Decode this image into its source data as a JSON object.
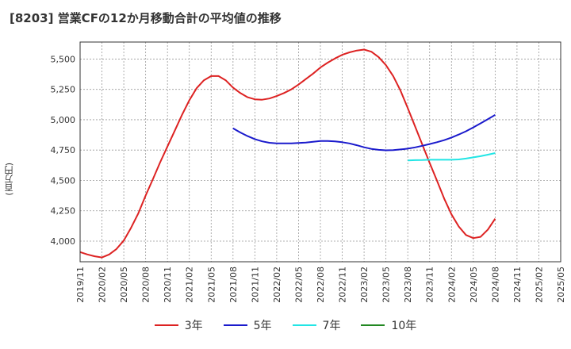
{
  "chart_data": {
    "type": "line",
    "title": "[8203]  営業CFの12か月移動合計の平均値の推移",
    "ylabel": "(百万円)",
    "ylim": [
      3830,
      5640
    ],
    "yticks": [
      4000,
      4250,
      4500,
      4750,
      5000,
      5250,
      5500
    ],
    "ytick_labels": [
      "4,000",
      "4,250",
      "4,500",
      "4,750",
      "5,000",
      "5,250",
      "5,500"
    ],
    "xlim": [
      "2019-11",
      "2025-05"
    ],
    "xtick_labels": [
      "2019/11",
      "2020/02",
      "2020/05",
      "2020/08",
      "2020/11",
      "2021/02",
      "2021/05",
      "2021/08",
      "2021/11",
      "2022/02",
      "2022/05",
      "2022/08",
      "2022/11",
      "2023/02",
      "2023/05",
      "2023/08",
      "2023/11",
      "2024/02",
      "2024/05",
      "2024/08",
      "2024/11",
      "2025/02",
      "2025/05"
    ],
    "grid": true,
    "legend_position": "bottom",
    "series": [
      {
        "name": "3年",
        "color": "#dd2222",
        "points": [
          [
            "2019-11",
            3910
          ],
          [
            "2019-12",
            3890
          ],
          [
            "2020-01",
            3875
          ],
          [
            "2020-02",
            3865
          ],
          [
            "2020-03",
            3890
          ],
          [
            "2020-04",
            3935
          ],
          [
            "2020-05",
            4005
          ],
          [
            "2020-06",
            4110
          ],
          [
            "2020-07",
            4230
          ],
          [
            "2020-08",
            4375
          ],
          [
            "2020-09",
            4510
          ],
          [
            "2020-10",
            4650
          ],
          [
            "2020-11",
            4780
          ],
          [
            "2020-12",
            4910
          ],
          [
            "2021-01",
            5040
          ],
          [
            "2021-02",
            5160
          ],
          [
            "2021-03",
            5260
          ],
          [
            "2021-04",
            5325
          ],
          [
            "2021-05",
            5360
          ],
          [
            "2021-06",
            5360
          ],
          [
            "2021-07",
            5325
          ],
          [
            "2021-08",
            5265
          ],
          [
            "2021-09",
            5220
          ],
          [
            "2021-10",
            5185
          ],
          [
            "2021-11",
            5168
          ],
          [
            "2021-12",
            5165
          ],
          [
            "2022-01",
            5175
          ],
          [
            "2022-02",
            5195
          ],
          [
            "2022-03",
            5220
          ],
          [
            "2022-04",
            5250
          ],
          [
            "2022-05",
            5290
          ],
          [
            "2022-06",
            5335
          ],
          [
            "2022-07",
            5380
          ],
          [
            "2022-08",
            5430
          ],
          [
            "2022-09",
            5470
          ],
          [
            "2022-10",
            5505
          ],
          [
            "2022-11",
            5535
          ],
          [
            "2022-12",
            5555
          ],
          [
            "2023-01",
            5570
          ],
          [
            "2023-02",
            5578
          ],
          [
            "2023-03",
            5560
          ],
          [
            "2023-04",
            5515
          ],
          [
            "2023-05",
            5450
          ],
          [
            "2023-06",
            5360
          ],
          [
            "2023-07",
            5240
          ],
          [
            "2023-08",
            5095
          ],
          [
            "2023-09",
            4945
          ],
          [
            "2023-10",
            4795
          ],
          [
            "2023-11",
            4645
          ],
          [
            "2023-12",
            4500
          ],
          [
            "2024-01",
            4350
          ],
          [
            "2024-02",
            4220
          ],
          [
            "2024-03",
            4120
          ],
          [
            "2024-04",
            4050
          ],
          [
            "2024-05",
            4025
          ],
          [
            "2024-06",
            4035
          ],
          [
            "2024-07",
            4095
          ],
          [
            "2024-08",
            4185
          ]
        ]
      },
      {
        "name": "5年",
        "color": "#1a1acc",
        "points": [
          [
            "2021-08",
            4930
          ],
          [
            "2021-09",
            4895
          ],
          [
            "2021-10",
            4865
          ],
          [
            "2021-11",
            4840
          ],
          [
            "2021-12",
            4822
          ],
          [
            "2022-01",
            4810
          ],
          [
            "2022-02",
            4805
          ],
          [
            "2022-03",
            4805
          ],
          [
            "2022-04",
            4805
          ],
          [
            "2022-05",
            4808
          ],
          [
            "2022-06",
            4812
          ],
          [
            "2022-07",
            4818
          ],
          [
            "2022-08",
            4825
          ],
          [
            "2022-09",
            4825
          ],
          [
            "2022-10",
            4822
          ],
          [
            "2022-11",
            4815
          ],
          [
            "2022-12",
            4805
          ],
          [
            "2023-01",
            4790
          ],
          [
            "2023-02",
            4773
          ],
          [
            "2023-03",
            4760
          ],
          [
            "2023-04",
            4752
          ],
          [
            "2023-05",
            4748
          ],
          [
            "2023-06",
            4750
          ],
          [
            "2023-07",
            4755
          ],
          [
            "2023-08",
            4762
          ],
          [
            "2023-09",
            4772
          ],
          [
            "2023-10",
            4785
          ],
          [
            "2023-11",
            4800
          ],
          [
            "2023-12",
            4815
          ],
          [
            "2024-01",
            4832
          ],
          [
            "2024-02",
            4853
          ],
          [
            "2024-03",
            4878
          ],
          [
            "2024-04",
            4905
          ],
          [
            "2024-05",
            4937
          ],
          [
            "2024-06",
            4970
          ],
          [
            "2024-07",
            5005
          ],
          [
            "2024-08",
            5040
          ]
        ]
      },
      {
        "name": "7年",
        "color": "#22e5e5",
        "points": [
          [
            "2023-08",
            4665
          ],
          [
            "2023-09",
            4667
          ],
          [
            "2023-10",
            4668
          ],
          [
            "2023-11",
            4670
          ],
          [
            "2023-12",
            4670
          ],
          [
            "2024-01",
            4670
          ],
          [
            "2024-02",
            4670
          ],
          [
            "2024-03",
            4673
          ],
          [
            "2024-04",
            4680
          ],
          [
            "2024-05",
            4690
          ],
          [
            "2024-06",
            4700
          ],
          [
            "2024-07",
            4712
          ],
          [
            "2024-08",
            4725
          ]
        ]
      },
      {
        "name": "10年",
        "color": "#228822",
        "points": []
      }
    ]
  }
}
